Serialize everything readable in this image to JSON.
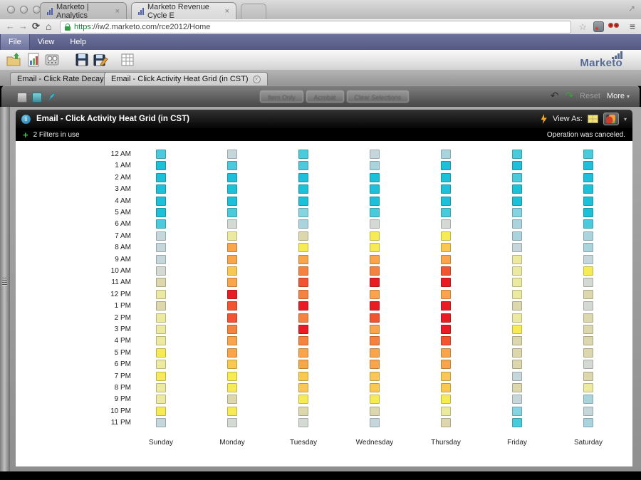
{
  "browser": {
    "tabs": [
      {
        "label": "Marketo | Analytics"
      },
      {
        "label": "Marketo Revenue Cycle E"
      }
    ],
    "url_scheme": "https",
    "url_rest": "://iw2.marketo.com/rce2012/Home",
    "glyphs": {
      "back": "←",
      "forward": "→",
      "refresh": "⟳",
      "home": "⌂",
      "star": "☆",
      "menu": "≡",
      "close": "×",
      "expand": "↗"
    }
  },
  "menu": {
    "items": [
      "File",
      "View",
      "Help"
    ]
  },
  "logo_text": "Marketo",
  "doc_tabs": [
    {
      "label": "Email - Click Rate Decay"
    },
    {
      "label": "Email - Click Activity Heat Grid (in CST)"
    }
  ],
  "qv_toolbar": {
    "disabled_buttons": [
      "Item Only",
      "Acrobat",
      "Clear Selections"
    ],
    "reset_label": "Reset",
    "more_label": "More",
    "glyphs": {
      "undo": "↶",
      "redo": "↷",
      "caret": "▾"
    }
  },
  "report": {
    "title": "Email - Click Activity Heat Grid (in CST)",
    "info_glyph": "i",
    "view_as_label": "View As:",
    "view_caret": "▾",
    "filters_label": "2 Filters in use",
    "filters_plus": "+",
    "status_message": "Operation was canceled."
  },
  "chart_data": {
    "type": "heatmap",
    "title": "Email - Click Activity Heat Grid (in CST)",
    "x_categories": [
      "Sunday",
      "Monday",
      "Tuesday",
      "Wednesday",
      "Thursday",
      "Friday",
      "Saturday"
    ],
    "y_categories": [
      "12 AM",
      "1 AM",
      "2 AM",
      "3 AM",
      "4 AM",
      "5 AM",
      "6 AM",
      "7 AM",
      "8 AM",
      "9 AM",
      "10 AM",
      "11 AM",
      "12 PM",
      "1 PM",
      "2 PM",
      "3 PM",
      "4 PM",
      "5 PM",
      "6 PM",
      "7 PM",
      "8 PM",
      "9 PM",
      "10 PM",
      "11 PM"
    ],
    "legend": "none",
    "grid": "off",
    "color_scale": {
      "low": "#1cc0d9",
      "mid": "#f6ea55",
      "high": "#e91b23"
    },
    "palette": {
      "c3": "#1cc0d9",
      "c2": "#49cadd",
      "c1": "#82d5e1",
      "b2": "#a9d4dd",
      "b1": "#c6d7db",
      "g0": "#d4d9d3",
      "t1": "#dcd7ac",
      "y1": "#ece9a1",
      "y2": "#f6ea55",
      "o1": "#f8c853",
      "o2": "#f8a54c",
      "o3": "#f6823f",
      "r1": "#f25432",
      "r2": "#e91b23"
    },
    "cells": [
      [
        "c2",
        "b1",
        "c2",
        "b1",
        "b2",
        "c2",
        "c2"
      ],
      [
        "c3",
        "c2",
        "c2",
        "b2",
        "c3",
        "c3",
        "c3"
      ],
      [
        "c3",
        "c3",
        "c3",
        "c3",
        "c3",
        "c2",
        "c3"
      ],
      [
        "c3",
        "c3",
        "c3",
        "c3",
        "c3",
        "c3",
        "c3"
      ],
      [
        "c3",
        "c3",
        "c3",
        "c3",
        "c3",
        "c3",
        "c3"
      ],
      [
        "c3",
        "c2",
        "c1",
        "c2",
        "c2",
        "c1",
        "c3"
      ],
      [
        "c2",
        "g0",
        "b2",
        "g0",
        "g0",
        "b2",
        "c2"
      ],
      [
        "b1",
        "y1",
        "t1",
        "y2",
        "y2",
        "b2",
        "b2"
      ],
      [
        "b1",
        "o2",
        "y2",
        "y2",
        "o1",
        "b1",
        "b2"
      ],
      [
        "b1",
        "o2",
        "o2",
        "o2",
        "o2",
        "y1",
        "b1"
      ],
      [
        "g0",
        "o1",
        "o3",
        "o3",
        "r1",
        "y1",
        "y2"
      ],
      [
        "t1",
        "o2",
        "r1",
        "r2",
        "r2",
        "y1",
        "g0"
      ],
      [
        "y1",
        "r2",
        "o3",
        "o2",
        "o2",
        "y1",
        "t1"
      ],
      [
        "t1",
        "r1",
        "r2",
        "r2",
        "r2",
        "t1",
        "g0"
      ],
      [
        "y1",
        "r1",
        "o3",
        "r1",
        "r2",
        "y1",
        "t1"
      ],
      [
        "y1",
        "o3",
        "r2",
        "o2",
        "r2",
        "y2",
        "t1"
      ],
      [
        "y1",
        "o2",
        "o3",
        "o3",
        "r1",
        "t1",
        "t1"
      ],
      [
        "y2",
        "o2",
        "o2",
        "o2",
        "o2",
        "t1",
        "t1"
      ],
      [
        "y1",
        "o1",
        "o2",
        "o2",
        "o2",
        "t1",
        "g0"
      ],
      [
        "y2",
        "y2",
        "o1",
        "o1",
        "o1",
        "b1",
        "t1"
      ],
      [
        "y1",
        "y2",
        "o1",
        "o1",
        "o1",
        "t1",
        "y1"
      ],
      [
        "y1",
        "t1",
        "y2",
        "y2",
        "y2",
        "b1",
        "b2"
      ],
      [
        "y2",
        "y2",
        "t1",
        "t1",
        "y1",
        "c1",
        "b1"
      ],
      [
        "b1",
        "g0",
        "g0",
        "b1",
        "t1",
        "c2",
        "b2"
      ]
    ]
  }
}
